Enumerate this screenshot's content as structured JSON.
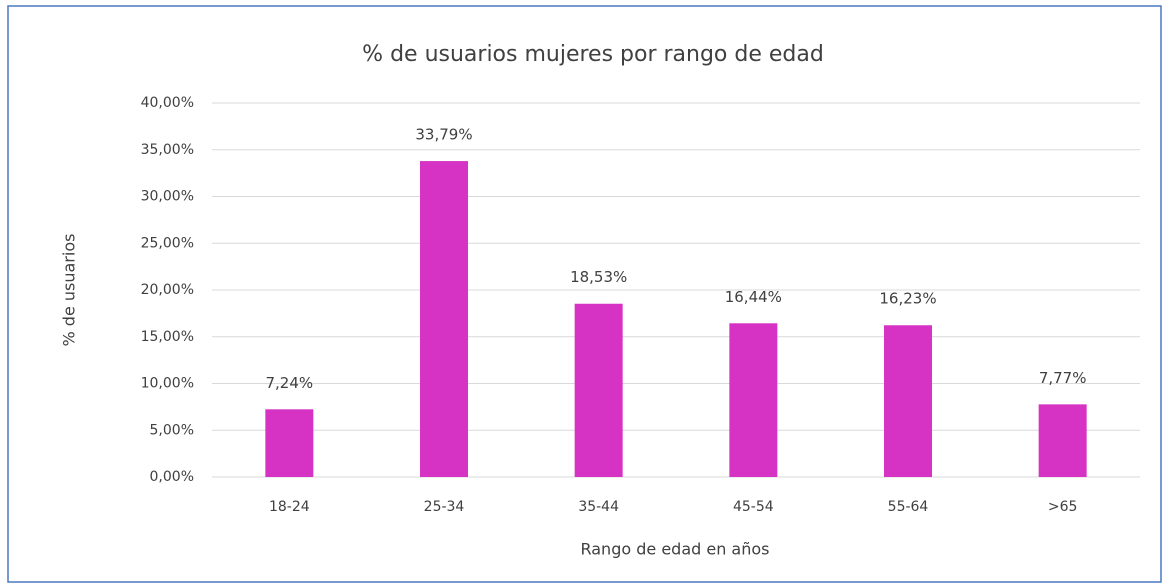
{
  "chart_data": {
    "type": "bar",
    "title": "% de usuarios mujeres por rango de edad",
    "x_label": "Rango de edad en años",
    "y_label": "% de usuarios",
    "categories": [
      "18-24",
      "25-34",
      "35-44",
      "45-54",
      "55-64",
      ">65"
    ],
    "values": [
      7.24,
      33.79,
      18.53,
      16.44,
      16.23,
      7.77
    ],
    "value_labels": [
      "7,24%",
      "33,79%",
      "18,53%",
      "16,44%",
      "16,23%",
      "7,77%"
    ],
    "color": "#d633c4",
    "ylim": [
      0,
      40
    ],
    "yticks": [
      {
        "value": 0,
        "label": "0,00%"
      },
      {
        "value": 5,
        "label": "5,00%"
      },
      {
        "value": 10,
        "label": "10,00%"
      },
      {
        "value": 15,
        "label": "15,00%"
      },
      {
        "value": 20,
        "label": "20,00%"
      },
      {
        "value": 25,
        "label": "25,00%"
      },
      {
        "value": 30,
        "label": "30,00%"
      },
      {
        "value": 35,
        "label": "35,00%"
      },
      {
        "value": 40,
        "label": "40,00%"
      }
    ],
    "grid": true
  }
}
